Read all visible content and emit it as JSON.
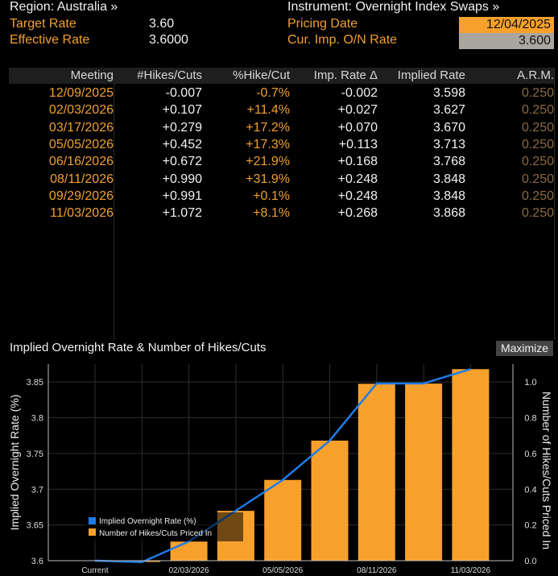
{
  "header": {
    "region_label": "Region: Australia »",
    "target_rate_label": "Target Rate",
    "target_rate_value": "3.60",
    "effective_rate_label": "Effective Rate",
    "effective_rate_value": "3.6000",
    "instrument_label": "Instrument: Overnight Index Swaps »",
    "pricing_date_label": "Pricing Date",
    "pricing_date_value": "12/04/2025",
    "cur_imp_label": "Cur. Imp. O/N Rate",
    "cur_imp_value": "3.600"
  },
  "table": {
    "columns": [
      "Meeting",
      "#Hikes/Cuts",
      "%Hike/Cut",
      "Imp. Rate Δ",
      "Implied Rate",
      "A.R.M."
    ],
    "rows": [
      {
        "meeting": "12/09/2025",
        "hikes": "-0.007",
        "pct": "-0.7%",
        "delta": "-0.002",
        "implied": "3.598",
        "arm": "0.250"
      },
      {
        "meeting": "02/03/2026",
        "hikes": "+0.107",
        "pct": "+11.4%",
        "delta": "+0.027",
        "implied": "3.627",
        "arm": "0.250"
      },
      {
        "meeting": "03/17/2026",
        "hikes": "+0.279",
        "pct": "+17.2%",
        "delta": "+0.070",
        "implied": "3.670",
        "arm": "0.250"
      },
      {
        "meeting": "05/05/2026",
        "hikes": "+0.452",
        "pct": "+17.3%",
        "delta": "+0.113",
        "implied": "3.713",
        "arm": "0.250"
      },
      {
        "meeting": "06/16/2026",
        "hikes": "+0.672",
        "pct": "+21.9%",
        "delta": "+0.168",
        "implied": "3.768",
        "arm": "0.250"
      },
      {
        "meeting": "08/11/2026",
        "hikes": "+0.990",
        "pct": "+31.9%",
        "delta": "+0.248",
        "implied": "3.848",
        "arm": "0.250"
      },
      {
        "meeting": "09/29/2026",
        "hikes": "+0.991",
        "pct": "+0.1%",
        "delta": "+0.248",
        "implied": "3.848",
        "arm": "0.250"
      },
      {
        "meeting": "11/03/2026",
        "hikes": "+1.072",
        "pct": "+8.1%",
        "delta": "+0.268",
        "implied": "3.868",
        "arm": "0.250"
      }
    ]
  },
  "chart_panel": {
    "title": "Implied Overnight Rate & Number of Hikes/Cuts",
    "maximize_label": "Maximize"
  },
  "colors": {
    "orange": "#f7a12c",
    "line_blue": "#1e7be6",
    "grid": "#2e2e2e"
  },
  "chart_data": {
    "type": "bar",
    "title": "Implied Overnight Rate & Number of Hikes/Cuts",
    "categories": [
      "Current",
      "12/09/2025",
      "02/03/2026",
      "03/17/2026",
      "05/05/2026",
      "06/16/2026",
      "08/11/2026",
      "09/29/2026",
      "11/03/2026"
    ],
    "x_tick_labels": [
      "Current",
      "02/03/2026",
      "05/05/2026",
      "08/11/2026",
      "11/03/2026"
    ],
    "series": [
      {
        "name": "Number of Hikes/Cuts Priced In",
        "kind": "bar",
        "axis": "right",
        "values": [
          0,
          -0.007,
          0.107,
          0.279,
          0.452,
          0.672,
          0.99,
          0.991,
          1.072
        ]
      },
      {
        "name": "Implied Overnight Rate (%)",
        "kind": "line",
        "axis": "left",
        "values": [
          3.6,
          3.598,
          3.627,
          3.67,
          3.713,
          3.768,
          3.848,
          3.848,
          3.868
        ]
      }
    ],
    "ylabel_left": "Implied Overnight Rate (%)",
    "ylabel_right": "Number of Hikes/Cuts Priced In",
    "ylim_left": [
      3.6,
      3.875
    ],
    "ylim_right": [
      0.0,
      1.1
    ],
    "yticks_left": [
      "3.6",
      "3.65",
      "3.7",
      "3.75",
      "3.8",
      "3.85"
    ],
    "yticks_right": [
      "0.0",
      "0.2",
      "0.4",
      "0.6",
      "0.8",
      "1.0"
    ],
    "grid": true,
    "legend": "bottom-left"
  }
}
